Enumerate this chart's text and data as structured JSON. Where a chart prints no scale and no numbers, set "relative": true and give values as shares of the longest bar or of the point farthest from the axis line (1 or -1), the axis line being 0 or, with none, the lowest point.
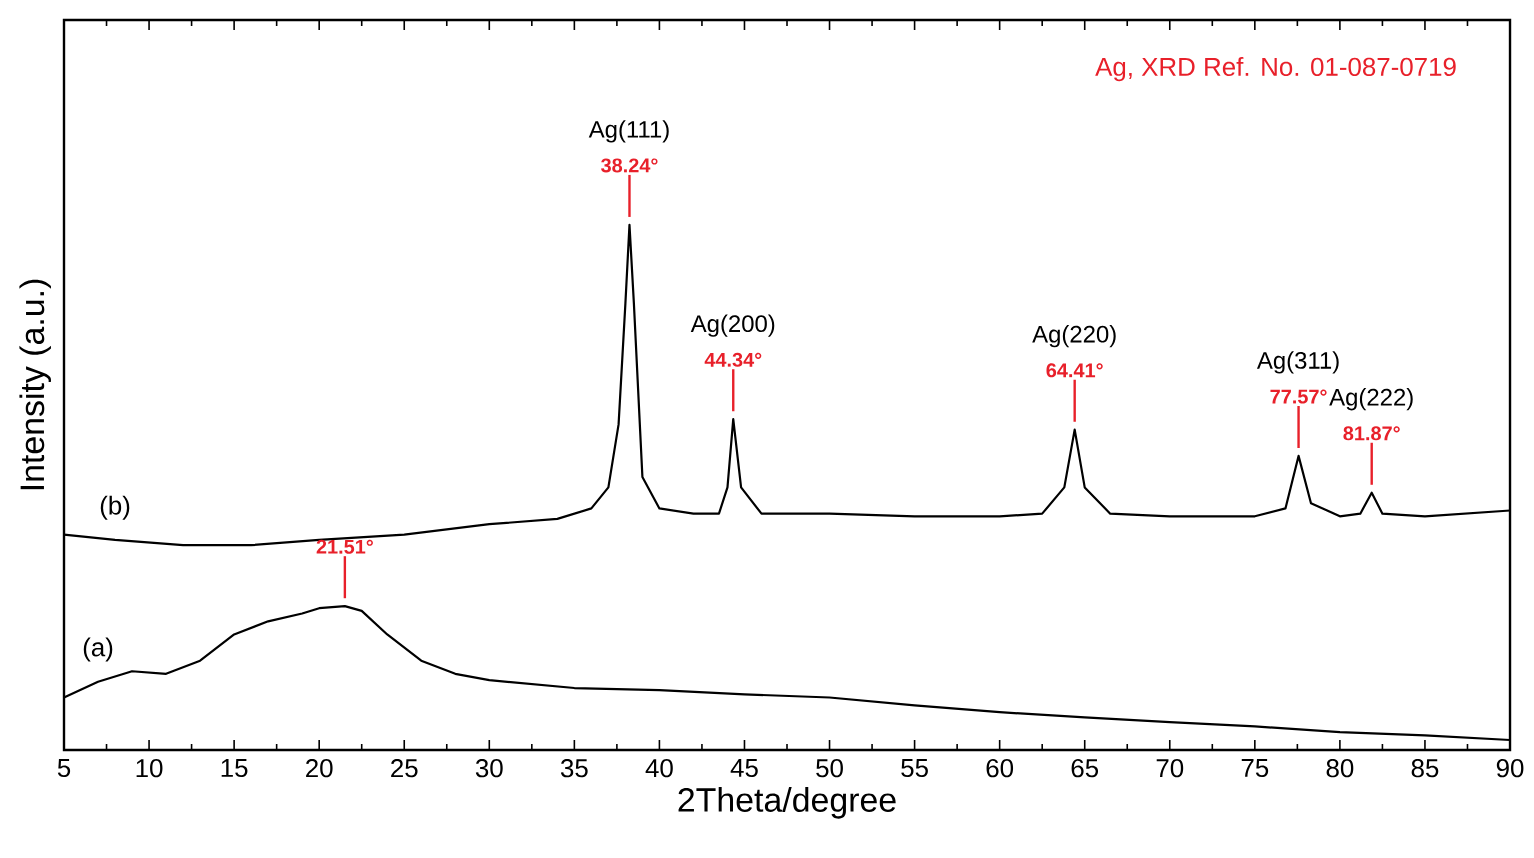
{
  "chart_data": {
    "type": "line",
    "relative": true,
    "xlabel": "2Theta/degree",
    "ylabel": "Intensity (a.u.)",
    "xlim": [
      5,
      90
    ],
    "xticks": [
      5,
      10,
      15,
      20,
      25,
      30,
      35,
      40,
      45,
      50,
      55,
      60,
      65,
      70,
      75,
      80,
      85,
      90
    ],
    "legend": false,
    "grid": false,
    "marker": "none",
    "line_style": "solid",
    "series": [
      {
        "name": "(b)",
        "color": "#000000",
        "x": [
          5,
          8,
          12,
          16,
          20,
          25,
          30,
          34,
          36,
          37,
          37.6,
          38.0,
          38.24,
          38.5,
          39,
          40,
          42,
          43.5,
          44.0,
          44.34,
          44.8,
          46,
          50,
          55,
          60,
          62.5,
          63.8,
          64.41,
          65,
          66.5,
          70,
          75,
          76.8,
          77.57,
          78.3,
          80,
          81.2,
          81.87,
          82.5,
          85,
          90
        ],
        "values": [
          0.41,
          0.4,
          0.39,
          0.39,
          0.4,
          0.41,
          0.43,
          0.44,
          0.46,
          0.5,
          0.62,
          0.85,
          1.0,
          0.85,
          0.52,
          0.46,
          0.45,
          0.45,
          0.5,
          0.63,
          0.5,
          0.45,
          0.45,
          0.445,
          0.445,
          0.45,
          0.5,
          0.61,
          0.5,
          0.45,
          0.445,
          0.445,
          0.46,
          0.56,
          0.47,
          0.445,
          0.45,
          0.49,
          0.45,
          0.445,
          0.456
        ]
      },
      {
        "name": "(a)",
        "color": "#000000",
        "x": [
          5,
          7,
          9,
          11,
          13,
          15,
          17,
          19,
          20,
          21.51,
          22.5,
          24,
          26,
          28,
          30,
          35,
          40,
          45,
          50,
          55,
          60,
          65,
          70,
          75,
          80,
          85,
          90
        ],
        "values": [
          0.1,
          0.13,
          0.15,
          0.145,
          0.17,
          0.22,
          0.245,
          0.26,
          0.27,
          0.274,
          0.265,
          0.22,
          0.17,
          0.145,
          0.133,
          0.118,
          0.114,
          0.106,
          0.1,
          0.085,
          0.072,
          0.062,
          0.053,
          0.045,
          0.034,
          0.028,
          0.019
        ]
      }
    ],
    "annotations": [
      "Ag, XRD Ref. No. 01-087-0719",
      {
        "text": "21.51°",
        "x": 21.51,
        "y": 0.274
      },
      {
        "text": "38.24°",
        "x": 38.24,
        "y": 1.0
      },
      "Ag(111)",
      {
        "text": "44.34°",
        "x": 44.34,
        "y": 0.63
      },
      "Ag(200)",
      {
        "text": "64.41°",
        "x": 64.41,
        "y": 0.61
      },
      "Ag(220)",
      {
        "text": "77.57°",
        "x": 77.57,
        "y": 0.56
      },
      "Ag(311)",
      {
        "text": "81.87°",
        "x": 81.87,
        "y": 0.49
      },
      "Ag(222)"
    ]
  }
}
